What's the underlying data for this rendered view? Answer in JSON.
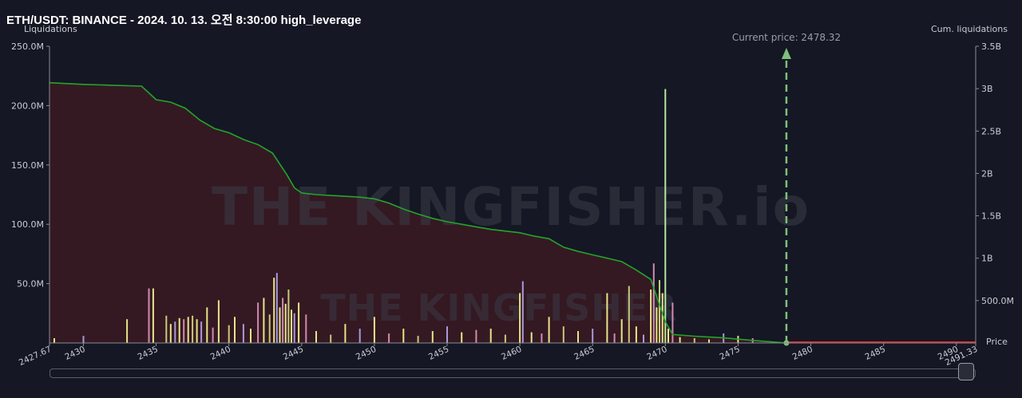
{
  "chart_data": {
    "type": "bar",
    "title": "ETH/USDT: BINANCE - 2024. 10. 13. 오전 8:30:00 high_leverage",
    "ylabel_left": "Liquidations",
    "ylabel_right": "Cum. liquidations",
    "xlabel": "Price",
    "watermark": "THE KINGFISHER.io",
    "watermark_small": "THE KINGFISHER",
    "current_price_label": "Current price: 2478.32",
    "current_price": 2478.32,
    "xlim": [
      2427.67,
      2491.33
    ],
    "ylim_left": [
      0,
      250
    ],
    "ylim_right": [
      0,
      3.5
    ],
    "x_ticks": [
      "2427.67",
      "2430",
      "2435",
      "2440",
      "2445",
      "2450",
      "2455",
      "2460",
      "2465",
      "2470",
      "2475",
      "2480",
      "2485",
      "2490",
      "2491.33"
    ],
    "x_tick_values": [
      2427.67,
      2430,
      2435,
      2440,
      2445,
      2450,
      2455,
      2460,
      2465,
      2470,
      2475,
      2480,
      2485,
      2490,
      2491.33
    ],
    "y_ticks_left": [
      "50.0M",
      "100.0M",
      "150.0M",
      "200.0M",
      "250.0M"
    ],
    "y_tick_values_left": [
      50,
      100,
      150,
      200,
      250
    ],
    "y_ticks_right": [
      "500.0M",
      "1B",
      "1.5B",
      "2B",
      "2.5B",
      "3B",
      "3.5B"
    ],
    "y_tick_values_right": [
      0.5,
      1,
      1.5,
      2,
      2.5,
      3,
      3.5
    ],
    "cumulative_series": {
      "name": "Cum. liquidations",
      "unit": "B",
      "x": [
        2427.67,
        2430,
        2432,
        2434,
        2435,
        2436,
        2437,
        2438,
        2439,
        2440,
        2441,
        2442,
        2443,
        2444,
        2444.5,
        2445,
        2446,
        2447,
        2448,
        2449,
        2450,
        2451,
        2452,
        2453,
        2454,
        2455,
        2456,
        2457,
        2458,
        2459,
        2460,
        2461,
        2462,
        2463,
        2464,
        2465,
        2466,
        2467,
        2468,
        2469,
        2469.5,
        2470,
        2470.5,
        2472,
        2474,
        2476,
        2478.32
      ],
      "y": [
        3.07,
        3.05,
        3.04,
        3.03,
        2.87,
        2.84,
        2.77,
        2.63,
        2.53,
        2.48,
        2.4,
        2.34,
        2.24,
        1.98,
        1.83,
        1.77,
        1.75,
        1.74,
        1.73,
        1.72,
        1.7,
        1.65,
        1.58,
        1.52,
        1.47,
        1.43,
        1.4,
        1.37,
        1.34,
        1.32,
        1.3,
        1.26,
        1.23,
        1.13,
        1.08,
        1.04,
        1.0,
        0.96,
        0.86,
        0.75,
        0.5,
        0.25,
        0.1,
        0.08,
        0.06,
        0.03,
        0.0
      ]
    },
    "bars": {
      "name": "Liquidations",
      "unit": "M",
      "x": [
        2428,
        2430,
        2433,
        2434.5,
        2434.8,
        2435.7,
        2436,
        2436.3,
        2436.6,
        2436.9,
        2437.2,
        2437.5,
        2437.8,
        2438.1,
        2438.5,
        2438.9,
        2439.3,
        2440,
        2440.4,
        2441,
        2441.5,
        2442,
        2442.4,
        2442.8,
        2443.1,
        2443.3,
        2443.5,
        2443.7,
        2443.9,
        2444.1,
        2444.3,
        2444.5,
        2444.8,
        2445.3,
        2446,
        2447,
        2448,
        2449,
        2450,
        2451,
        2452,
        2453,
        2454,
        2455,
        2456,
        2457,
        2458,
        2459,
        2460,
        2460.2,
        2460.8,
        2461.5,
        2462,
        2463,
        2464,
        2465,
        2466,
        2466.5,
        2467,
        2467.5,
        2468,
        2468.5,
        2469,
        2469.2,
        2469.4,
        2469.6,
        2469.8,
        2470,
        2470.2,
        2470.5,
        2471,
        2472,
        2473,
        2474,
        2475,
        2476
      ],
      "values": [
        4,
        6,
        20,
        46,
        46,
        23,
        16,
        18,
        21,
        20,
        22,
        23,
        20,
        18,
        30,
        13,
        36,
        15,
        22,
        16,
        12,
        34,
        38,
        24,
        55,
        59,
        30,
        38,
        33,
        45,
        28,
        25,
        34,
        24,
        10,
        7,
        16,
        12,
        22,
        8,
        12,
        6,
        10,
        14,
        9,
        11,
        12,
        7,
        42,
        52,
        9,
        8,
        22,
        14,
        10,
        12,
        42,
        8,
        20,
        48,
        14,
        7,
        45,
        67,
        30,
        53,
        42,
        214,
        12,
        34,
        5,
        4,
        3,
        8,
        6,
        4
      ]
    },
    "legend": "none",
    "grid": false
  }
}
